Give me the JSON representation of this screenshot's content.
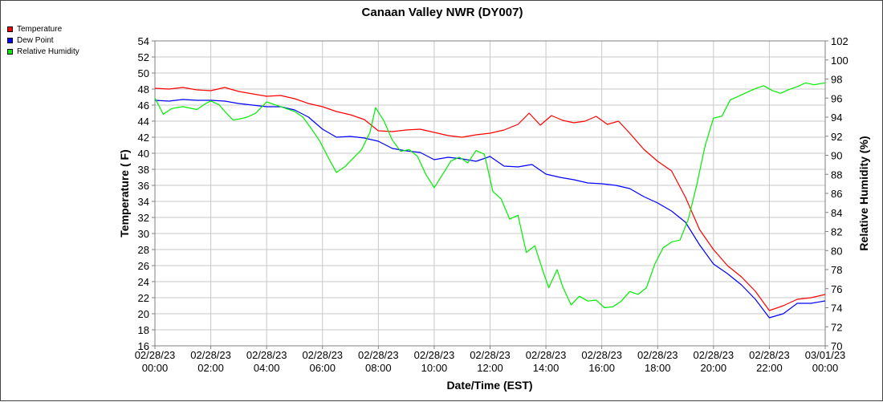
{
  "chart_data": {
    "type": "line",
    "title": "Canaan Valley NWR (DY007)",
    "xlabel": "Date/Time (EST)",
    "ylabel_left": "Temperature ( F)",
    "ylabel_right": "Relative Humidity (%)",
    "ylim_left": [
      16,
      54
    ],
    "ylim_right": [
      70,
      102
    ],
    "y_ticks_left": [
      "16",
      "18",
      "20",
      "22",
      "24",
      "26",
      "28",
      "30",
      "32",
      "34",
      "36",
      "38",
      "40",
      "42",
      "44",
      "46",
      "48",
      "50",
      "52",
      "54"
    ],
    "y_ticks_right": [
      "70",
      "72",
      "74",
      "76",
      "78",
      "80",
      "82",
      "84",
      "86",
      "88",
      "90",
      "92",
      "94",
      "96",
      "98",
      "100",
      "102"
    ],
    "x_ticks": [
      {
        "hour": 0,
        "date": "02/28/23",
        "time": "00:00"
      },
      {
        "hour": 2,
        "date": "02/28/23",
        "time": "02:00"
      },
      {
        "hour": 4,
        "date": "02/28/23",
        "time": "04:00"
      },
      {
        "hour": 6,
        "date": "02/28/23",
        "time": "06:00"
      },
      {
        "hour": 8,
        "date": "02/28/23",
        "time": "08:00"
      },
      {
        "hour": 10,
        "date": "02/28/23",
        "time": "10:00"
      },
      {
        "hour": 12,
        "date": "02/28/23",
        "time": "12:00"
      },
      {
        "hour": 14,
        "date": "02/28/23",
        "time": "14:00"
      },
      {
        "hour": 16,
        "date": "02/28/23",
        "time": "16:00"
      },
      {
        "hour": 18,
        "date": "02/28/23",
        "time": "18:00"
      },
      {
        "hour": 20,
        "date": "02/28/23",
        "time": "20:00"
      },
      {
        "hour": 22,
        "date": "02/28/23",
        "time": "22:00"
      },
      {
        "hour": 24,
        "date": "03/01/23",
        "time": "00:00"
      }
    ],
    "grid": true,
    "legend_placement": "top-left outside",
    "series": [
      {
        "name": "Temperature",
        "axis": "left",
        "color": "#ff0000",
        "points": [
          [
            0,
            48.1
          ],
          [
            0.5,
            48.0
          ],
          [
            1,
            48.2
          ],
          [
            1.5,
            47.9
          ],
          [
            2,
            47.8
          ],
          [
            2.5,
            48.2
          ],
          [
            3,
            47.7
          ],
          [
            3.5,
            47.4
          ],
          [
            4,
            47.1
          ],
          [
            4.5,
            47.2
          ],
          [
            5,
            46.8
          ],
          [
            5.5,
            46.2
          ],
          [
            6,
            45.8
          ],
          [
            6.5,
            45.2
          ],
          [
            7,
            44.8
          ],
          [
            7.5,
            44.2
          ],
          [
            8,
            42.8
          ],
          [
            8.5,
            42.7
          ],
          [
            9,
            42.9
          ],
          [
            9.5,
            43.0
          ],
          [
            10,
            42.6
          ],
          [
            10.5,
            42.2
          ],
          [
            11,
            42.0
          ],
          [
            11.5,
            42.3
          ],
          [
            12,
            42.5
          ],
          [
            12.5,
            42.9
          ],
          [
            13,
            43.6
          ],
          [
            13.4,
            45.0
          ],
          [
            13.8,
            43.5
          ],
          [
            14.2,
            44.7
          ],
          [
            14.6,
            44.1
          ],
          [
            15,
            43.8
          ],
          [
            15.4,
            44.0
          ],
          [
            15.8,
            44.6
          ],
          [
            16.2,
            43.6
          ],
          [
            16.6,
            44.0
          ],
          [
            17,
            42.5
          ],
          [
            17.5,
            40.5
          ],
          [
            18,
            39.0
          ],
          [
            18.5,
            37.8
          ],
          [
            19,
            34.5
          ],
          [
            19.5,
            30.5
          ],
          [
            20,
            28.0
          ],
          [
            20.5,
            26.0
          ],
          [
            21,
            24.6
          ],
          [
            21.5,
            22.8
          ],
          [
            22,
            20.4
          ],
          [
            22.5,
            21.0
          ],
          [
            23,
            21.8
          ],
          [
            23.5,
            22.0
          ],
          [
            24,
            22.4
          ]
        ]
      },
      {
        "name": "Dew Point",
        "axis": "left",
        "color": "#0000ff",
        "points": [
          [
            0,
            46.6
          ],
          [
            0.5,
            46.5
          ],
          [
            1,
            46.7
          ],
          [
            1.5,
            46.6
          ],
          [
            2,
            46.6
          ],
          [
            2.5,
            46.5
          ],
          [
            3,
            46.2
          ],
          [
            3.5,
            46.0
          ],
          [
            4,
            45.8
          ],
          [
            4.5,
            45.8
          ],
          [
            5,
            45.4
          ],
          [
            5.5,
            44.5
          ],
          [
            6,
            43.0
          ],
          [
            6.5,
            42.0
          ],
          [
            7,
            42.1
          ],
          [
            7.5,
            41.9
          ],
          [
            8,
            41.5
          ],
          [
            8.5,
            40.6
          ],
          [
            9,
            40.3
          ],
          [
            9.5,
            40.1
          ],
          [
            10,
            39.2
          ],
          [
            10.5,
            39.5
          ],
          [
            11,
            39.3
          ],
          [
            11.5,
            39.0
          ],
          [
            12,
            39.6
          ],
          [
            12.5,
            38.4
          ],
          [
            13,
            38.3
          ],
          [
            13.5,
            38.6
          ],
          [
            14,
            37.4
          ],
          [
            14.5,
            37.0
          ],
          [
            15,
            36.7
          ],
          [
            15.5,
            36.3
          ],
          [
            16,
            36.2
          ],
          [
            16.5,
            36.0
          ],
          [
            17,
            35.6
          ],
          [
            17.5,
            34.6
          ],
          [
            18,
            33.8
          ],
          [
            18.5,
            32.8
          ],
          [
            19,
            31.4
          ],
          [
            19.5,
            28.6
          ],
          [
            20,
            26.2
          ],
          [
            20.5,
            25.0
          ],
          [
            21,
            23.6
          ],
          [
            21.5,
            21.8
          ],
          [
            22,
            19.5
          ],
          [
            22.5,
            20.0
          ],
          [
            23,
            21.3
          ],
          [
            23.5,
            21.3
          ],
          [
            24,
            21.6
          ]
        ]
      },
      {
        "name": "Relative Humidity",
        "axis": "right",
        "color": "#00ee00",
        "points": [
          [
            0,
            96.0
          ],
          [
            0.3,
            94.3
          ],
          [
            0.6,
            94.9
          ],
          [
            1,
            95.1
          ],
          [
            1.5,
            94.8
          ],
          [
            1.8,
            95.4
          ],
          [
            2,
            95.7
          ],
          [
            2.3,
            95.3
          ],
          [
            2.5,
            94.6
          ],
          [
            2.8,
            93.7
          ],
          [
            3,
            93.8
          ],
          [
            3.3,
            94.0
          ],
          [
            3.6,
            94.4
          ],
          [
            4,
            95.6
          ],
          [
            4.3,
            95.3
          ],
          [
            4.6,
            95.0
          ],
          [
            5,
            94.6
          ],
          [
            5.3,
            94.0
          ],
          [
            5.6,
            92.8
          ],
          [
            5.9,
            91.5
          ],
          [
            6.2,
            89.8
          ],
          [
            6.5,
            88.2
          ],
          [
            6.8,
            88.8
          ],
          [
            7.1,
            89.7
          ],
          [
            7.4,
            90.6
          ],
          [
            7.7,
            92.4
          ],
          [
            7.9,
            95.0
          ],
          [
            8.2,
            93.6
          ],
          [
            8.5,
            91.6
          ],
          [
            8.8,
            90.4
          ],
          [
            9.1,
            90.6
          ],
          [
            9.4,
            89.9
          ],
          [
            9.7,
            88.0
          ],
          [
            10,
            86.6
          ],
          [
            10.3,
            88.0
          ],
          [
            10.6,
            89.4
          ],
          [
            10.9,
            89.8
          ],
          [
            11.2,
            89.2
          ],
          [
            11.5,
            90.5
          ],
          [
            11.8,
            90.1
          ],
          [
            12.1,
            86.2
          ],
          [
            12.4,
            85.4
          ],
          [
            12.7,
            83.3
          ],
          [
            13,
            83.7
          ],
          [
            13.3,
            79.8
          ],
          [
            13.6,
            80.5
          ],
          [
            13.9,
            77.8
          ],
          [
            14.1,
            76.1
          ],
          [
            14.4,
            78.0
          ],
          [
            14.6,
            76.2
          ],
          [
            14.9,
            74.3
          ],
          [
            15.2,
            75.2
          ],
          [
            15.5,
            74.7
          ],
          [
            15.8,
            74.8
          ],
          [
            16.1,
            74.0
          ],
          [
            16.4,
            74.1
          ],
          [
            16.7,
            74.7
          ],
          [
            17,
            75.7
          ],
          [
            17.3,
            75.4
          ],
          [
            17.6,
            76.1
          ],
          [
            17.9,
            78.6
          ],
          [
            18.2,
            80.3
          ],
          [
            18.5,
            80.9
          ],
          [
            18.8,
            81.1
          ],
          [
            19.1,
            83.3
          ],
          [
            19.4,
            86.9
          ],
          [
            19.7,
            91.0
          ],
          [
            20,
            93.9
          ],
          [
            20.3,
            94.1
          ],
          [
            20.6,
            95.8
          ],
          [
            20.9,
            96.2
          ],
          [
            21.2,
            96.6
          ],
          [
            21.5,
            97.0
          ],
          [
            21.8,
            97.3
          ],
          [
            22.1,
            96.8
          ],
          [
            22.4,
            96.5
          ],
          [
            22.7,
            96.9
          ],
          [
            23,
            97.2
          ],
          [
            23.3,
            97.6
          ],
          [
            23.6,
            97.4
          ],
          [
            24,
            97.6
          ]
        ]
      }
    ]
  }
}
